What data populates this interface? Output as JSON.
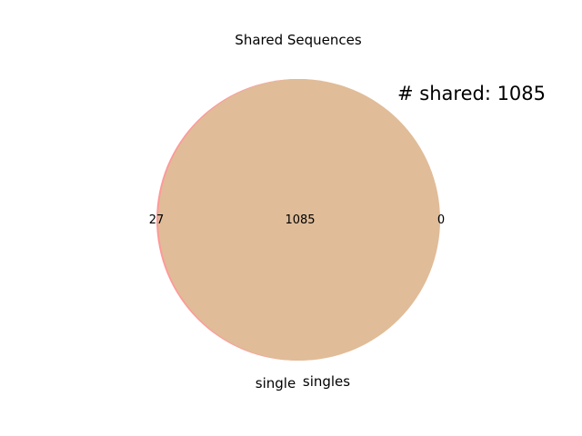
{
  "chart_data": {
    "type": "venn",
    "title": "Shared Sequences",
    "annotation": "# shared: 1085",
    "sets": [
      {
        "name": "single",
        "color": "#ff9999",
        "only_count": "27"
      },
      {
        "name": "singles",
        "color": "#c8e6a0",
        "only_count": "0"
      }
    ],
    "intersection_count": "1085",
    "intersection_color": "#e0bc98"
  }
}
